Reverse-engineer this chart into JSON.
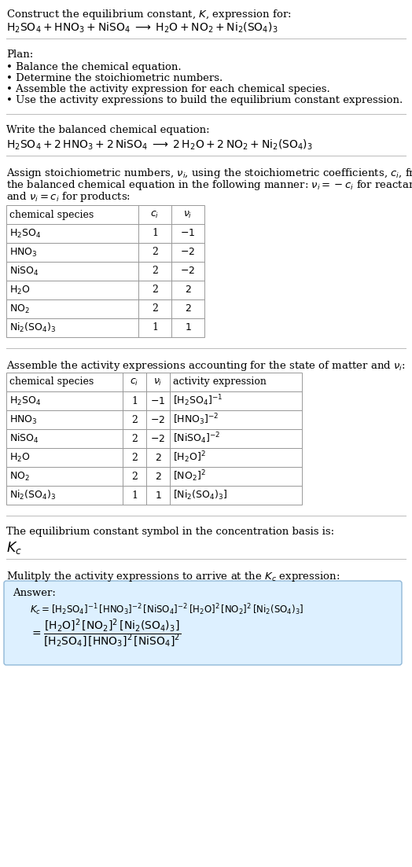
{
  "bg_color": "#ffffff",
  "text_color": "#000000",
  "title_line1": "Construct the equilibrium constant, $K$, expression for:",
  "title_line2": "$\\mathrm{H_2SO_4 + HNO_3 + NiSO_4 \\;\\longrightarrow\\; H_2O + NO_2 + Ni_2(SO_4)_3}$",
  "plan_header": "Plan:",
  "plan_items": [
    "• Balance the chemical equation.",
    "• Determine the stoichiometric numbers.",
    "• Assemble the activity expression for each chemical species.",
    "• Use the activity expressions to build the equilibrium constant expression."
  ],
  "balanced_header": "Write the balanced chemical equation:",
  "balanced_eq": "$\\mathrm{H_2SO_4 + 2\\,HNO_3 + 2\\,NiSO_4 \\;\\longrightarrow\\; 2\\,H_2O + 2\\,NO_2 + Ni_2(SO_4)_3}$",
  "stoich_intro": "Assign stoichiometric numbers, $\\nu_i$, using the stoichiometric coefficients, $c_i$, from\nthe balanced chemical equation in the following manner: $\\nu_i = -c_i$ for reactants\nand $\\nu_i = c_i$ for products:",
  "table1_data": [
    [
      "chemical species",
      "$c_i$",
      "$\\nu_i$"
    ],
    [
      "$\\mathrm{H_2SO_4}$",
      "1",
      "$-1$"
    ],
    [
      "$\\mathrm{HNO_3}$",
      "2",
      "$-2$"
    ],
    [
      "$\\mathrm{NiSO_4}$",
      "2",
      "$-2$"
    ],
    [
      "$\\mathrm{H_2O}$",
      "2",
      "$2$"
    ],
    [
      "$\\mathrm{NO_2}$",
      "2",
      "$2$"
    ],
    [
      "$\\mathrm{Ni_2(SO_4)_3}$",
      "1",
      "$1$"
    ]
  ],
  "activity_intro": "Assemble the activity expressions accounting for the state of matter and $\\nu_i$:",
  "table2_data": [
    [
      "chemical species",
      "$c_i$",
      "$\\nu_i$",
      "activity expression"
    ],
    [
      "$\\mathrm{H_2SO_4}$",
      "1",
      "$-1$",
      "$[\\mathrm{H_2SO_4}]^{-1}$"
    ],
    [
      "$\\mathrm{HNO_3}$",
      "2",
      "$-2$",
      "$[\\mathrm{HNO_3}]^{-2}$"
    ],
    [
      "$\\mathrm{NiSO_4}$",
      "2",
      "$-2$",
      "$[\\mathrm{NiSO_4}]^{-2}$"
    ],
    [
      "$\\mathrm{H_2O}$",
      "2",
      "$2$",
      "$[\\mathrm{H_2O}]^{2}$"
    ],
    [
      "$\\mathrm{NO_2}$",
      "2",
      "$2$",
      "$[\\mathrm{NO_2}]^{2}$"
    ],
    [
      "$\\mathrm{Ni_2(SO_4)_3}$",
      "1",
      "$1$",
      "$[\\mathrm{Ni_2(SO_4)_3}]$"
    ]
  ],
  "kc_header": "The equilibrium constant symbol in the concentration basis is:",
  "kc_symbol": "$K_c$",
  "multiply_header": "Mulitply the activity expressions to arrive at the $K_c$ expression:",
  "answer_label": "Answer:",
  "answer_line1": "$K_c = [\\mathrm{H_2SO_4}]^{-1}\\,[\\mathrm{HNO_3}]^{-2}\\,[\\mathrm{NiSO_4}]^{-2}\\,[\\mathrm{H_2O}]^{2}\\,[\\mathrm{NO_2}]^{2}\\,[\\mathrm{Ni_2(SO_4)_3}]$",
  "answer_eq_lhs": "$= \\dfrac{[\\mathrm{H_2O}]^{2}\\,[\\mathrm{NO_2}]^{2}\\,[\\mathrm{Ni_2(SO_4)_3}]}{[\\mathrm{H_2SO_4}]\\,[\\mathrm{HNO_3}]^{2}\\,[\\mathrm{NiSO_4}]^{2}}$",
  "answer_box_color": "#ddf0ff",
  "answer_box_edge": "#90b8d8",
  "table_line_color": "#999999",
  "sep_line_color": "#bbbbbb",
  "font_size": 9.5
}
